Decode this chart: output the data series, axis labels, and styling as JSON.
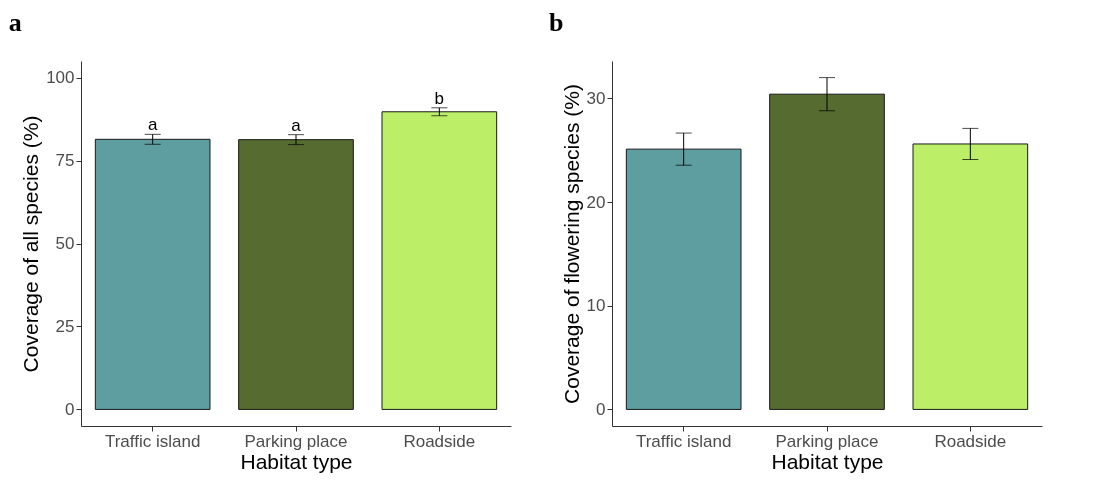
{
  "chart_data": [
    {
      "type": "bar",
      "title": "a",
      "xlabel": "Habitat type",
      "ylabel": "Coverage of all species (%)",
      "categories": [
        "Traffic island",
        "Parking place",
        "Roadside"
      ],
      "values": [
        81.4,
        81.3,
        89.7
      ],
      "colors": [
        "#5f9ea0",
        "#556b2f",
        "#bcee68"
      ],
      "errors": [
        1.5,
        1.5,
        1.2
      ],
      "ylim": [
        -5,
        105
      ],
      "yticks": [
        0,
        25,
        50,
        75,
        100
      ],
      "annotations": [
        {
          "text": "a",
          "x": "Traffic island",
          "y": 82.9
        },
        {
          "text": "a",
          "x": "Parking place",
          "y": 82.8
        },
        {
          "text": "b",
          "x": "Roadside",
          "y": 90.9
        }
      ]
    },
    {
      "type": "bar",
      "title": "b",
      "xlabel": "Habitat type",
      "ylabel": "Coverage of flowering species (%)",
      "categories": [
        "Traffic island",
        "Parking place",
        "Roadside"
      ],
      "values": [
        25.1,
        30.4,
        25.6
      ],
      "colors": [
        "#5f9ea0",
        "#556b2f",
        "#bcee68"
      ],
      "errors": [
        1.55,
        1.6,
        1.5
      ],
      "ylim": [
        -1.6,
        33.6
      ],
      "yticks": [
        0,
        10,
        20,
        30
      ]
    }
  ]
}
